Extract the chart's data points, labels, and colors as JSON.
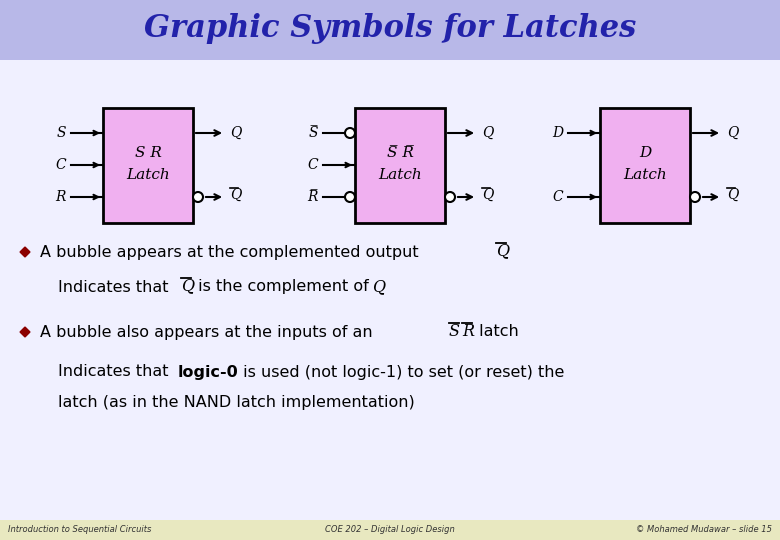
{
  "title": "Graphic Symbols for Latches",
  "title_color": "#2222aa",
  "title_bg": "#b8b8e8",
  "slide_bg": "#f0f0ff",
  "footer_bg": "#e8e8c0",
  "box_fill": "#f0b0f0",
  "box_border": "#000000",
  "text_color": "#000000",
  "bullet_color": "#8B0000",
  "footer_left": "Introduction to Sequential Circuits",
  "footer_center": "COE 202 – Digital Logic Design",
  "footer_right": "© Mohamed Mudawar – slide 15"
}
